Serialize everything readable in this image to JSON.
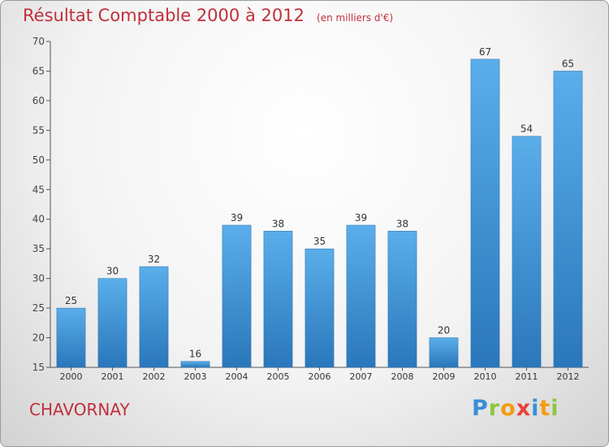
{
  "chart_data": {
    "type": "bar",
    "title": "Résultat Comptable 2000 à 2012",
    "subtitle": "(en milliers d'€)",
    "categories": [
      "2000",
      "2001",
      "2002",
      "2003",
      "2004",
      "2005",
      "2006",
      "2007",
      "2008",
      "2009",
      "2010",
      "2011",
      "2012"
    ],
    "values": [
      25,
      30,
      32,
      16,
      39,
      38,
      35,
      39,
      38,
      20,
      67,
      54,
      65
    ],
    "ylim": [
      15,
      70
    ],
    "yticks": [
      15,
      20,
      25,
      30,
      35,
      40,
      45,
      50,
      55,
      60,
      65,
      70
    ],
    "grid": false,
    "bar_color": "#3a8fd6",
    "xlabel": "",
    "ylabel": ""
  },
  "location": "CHAVORNAY",
  "logo": {
    "p": "P",
    "r": "r",
    "o": "o",
    "x": "x",
    "i1": "i",
    "t": "t",
    "i2": "i"
  },
  "colors": {
    "title": "#c0303c",
    "bar": "#3a8fd6"
  }
}
